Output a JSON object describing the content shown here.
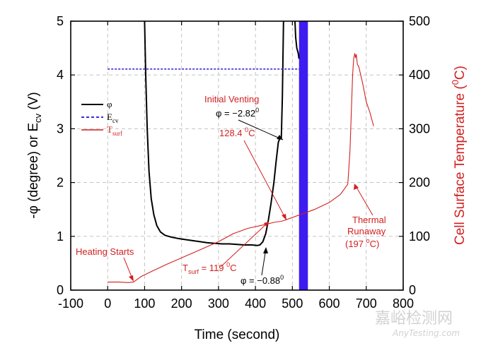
{
  "chart_data": {
    "type": "line",
    "x_axis": {
      "label": "Time (second)",
      "range": [
        -100,
        800
      ],
      "ticks": [
        "-100",
        "0",
        "100",
        "200",
        "300",
        "400",
        "500",
        "600",
        "700",
        "800"
      ],
      "tick_values": [
        -100,
        0,
        100,
        200,
        300,
        400,
        500,
        600,
        700,
        800
      ]
    },
    "y_left": {
      "label": "-φ (degree) or E",
      "label_sub": "cv",
      "label_tail": " (V)",
      "range": [
        0,
        5
      ],
      "ticks": [
        "0",
        "1",
        "2",
        "3",
        "4",
        "5"
      ],
      "tick_values": [
        0,
        1,
        2,
        3,
        4,
        5
      ]
    },
    "y_right": {
      "label": "Cell Surface Temperature (",
      "label_sup": "0",
      "label_tail": "C)",
      "range": [
        0,
        500
      ],
      "ticks": [
        "0",
        "100",
        "200",
        "300",
        "400",
        "500"
      ],
      "tick_values": [
        0,
        100,
        200,
        300,
        400,
        500
      ]
    },
    "grid": true,
    "legend": {
      "position": "left-middle",
      "entries": [
        {
          "symbol": "φ",
          "sub": "",
          "color": "#000000",
          "style": "solid"
        },
        {
          "symbol": "E",
          "sub": "cv",
          "color": "#3b2bdc",
          "style": "dashed"
        },
        {
          "symbol": "T",
          "sub": "surf",
          "color": "#d21f1f",
          "style": "solid"
        }
      ]
    },
    "series": [
      {
        "name": "phi",
        "axis": "left",
        "color": "#000000",
        "points": [
          [
            100,
            5.0
          ],
          [
            103,
            4.0
          ],
          [
            107,
            3.0
          ],
          [
            112,
            2.2
          ],
          [
            118,
            1.7
          ],
          [
            125,
            1.4
          ],
          [
            133,
            1.2
          ],
          [
            143,
            1.08
          ],
          [
            155,
            1.02
          ],
          [
            170,
            0.99
          ],
          [
            190,
            0.96
          ],
          [
            210,
            0.94
          ],
          [
            230,
            0.92
          ],
          [
            250,
            0.9
          ],
          [
            270,
            0.88
          ],
          [
            290,
            0.87
          ],
          [
            310,
            0.86
          ],
          [
            330,
            0.86
          ],
          [
            350,
            0.85
          ],
          [
            370,
            0.84
          ],
          [
            390,
            0.84
          ],
          [
            405,
            0.83
          ],
          [
            412,
            0.84
          ],
          [
            420,
            0.9
          ],
          [
            428,
            1.05
          ],
          [
            435,
            1.3
          ],
          [
            442,
            1.6
          ],
          [
            450,
            2.0
          ],
          [
            456,
            2.4
          ],
          [
            462,
            2.75
          ],
          [
            466,
            2.82
          ],
          [
            470,
            2.83
          ],
          [
            473,
            3.6
          ],
          [
            476,
            5.0
          ]
        ]
      },
      {
        "name": "phi_vented",
        "axis": "left",
        "color": "#000000",
        "points": [
          [
            507,
            5.0
          ],
          [
            509,
            4.7
          ],
          [
            512,
            4.5
          ],
          [
            516,
            4.4
          ],
          [
            518,
            4.3
          ]
        ]
      },
      {
        "name": "Ecv",
        "axis": "left",
        "color": "#3b2bdc",
        "points": [
          [
            0,
            4.11
          ],
          [
            100,
            4.11
          ],
          [
            200,
            4.11
          ],
          [
            300,
            4.11
          ],
          [
            400,
            4.11
          ],
          [
            500,
            4.11
          ],
          [
            520,
            4.11
          ]
        ]
      },
      {
        "name": "Tsurf",
        "axis": "right",
        "color": "#d21f1f",
        "points": [
          [
            0,
            15
          ],
          [
            30,
            15
          ],
          [
            55,
            14
          ],
          [
            70,
            15
          ],
          [
            90,
            25
          ],
          [
            120,
            35
          ],
          [
            160,
            48
          ],
          [
            200,
            60
          ],
          [
            250,
            75
          ],
          [
            300,
            90
          ],
          [
            340,
            105
          ],
          [
            380,
            115
          ],
          [
            420,
            121
          ],
          [
            450,
            126
          ],
          [
            470,
            128
          ],
          [
            480,
            130
          ],
          [
            520,
            140
          ],
          [
            560,
            150
          ],
          [
            600,
            163
          ],
          [
            630,
            178
          ],
          [
            650,
            197
          ],
          [
            656,
            260
          ],
          [
            660,
            340
          ],
          [
            663,
            400
          ],
          [
            666,
            430
          ],
          [
            669,
            440
          ],
          [
            671,
            432
          ],
          [
            673,
            438
          ],
          [
            676,
            420
          ],
          [
            680,
            415
          ],
          [
            690,
            385
          ],
          [
            700,
            350
          ],
          [
            710,
            330
          ],
          [
            720,
            305
          ]
        ]
      }
    ],
    "venting_band": {
      "x_start": 518,
      "x_end": 542,
      "color": "#3c1cf0"
    },
    "annotations": [
      {
        "text": "Initial Venting",
        "color": "#d21f1f"
      },
      {
        "text": "φ = −2.82",
        "sup": "0",
        "color": "#000000"
      },
      {
        "text": "128.4 ",
        "sup": "0",
        "tail": "C",
        "color": "#d21f1f"
      },
      {
        "text": "Heating Starts",
        "color": "#d21f1f"
      },
      {
        "text": "T",
        "sub": "surf",
        "tail": " = 119 ",
        "sup": "0",
        "tail2": "C",
        "color": "#d21f1f"
      },
      {
        "text": "φ = −0.88",
        "sup": "0",
        "color": "#000000"
      },
      {
        "text": "Thermal",
        "color": "#d21f1f"
      },
      {
        "text": "Runaway",
        "color": "#d21f1f"
      },
      {
        "text": "(197 ",
        "sup": "o",
        "tail": "C)",
        "color": "#d21f1f"
      }
    ]
  },
  "watermark": {
    "text": "嘉峪检测网",
    "url": "AnyTesting.com"
  }
}
